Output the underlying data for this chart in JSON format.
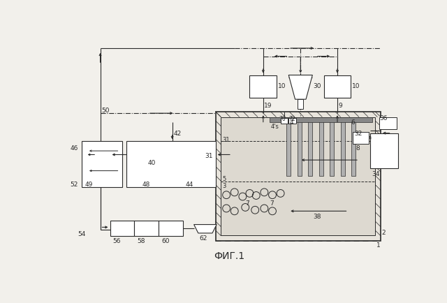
{
  "bg_color": "#f2f0eb",
  "line_color": "#2a2a2a",
  "title": "ФИГ.1",
  "title_fontsize": 10
}
